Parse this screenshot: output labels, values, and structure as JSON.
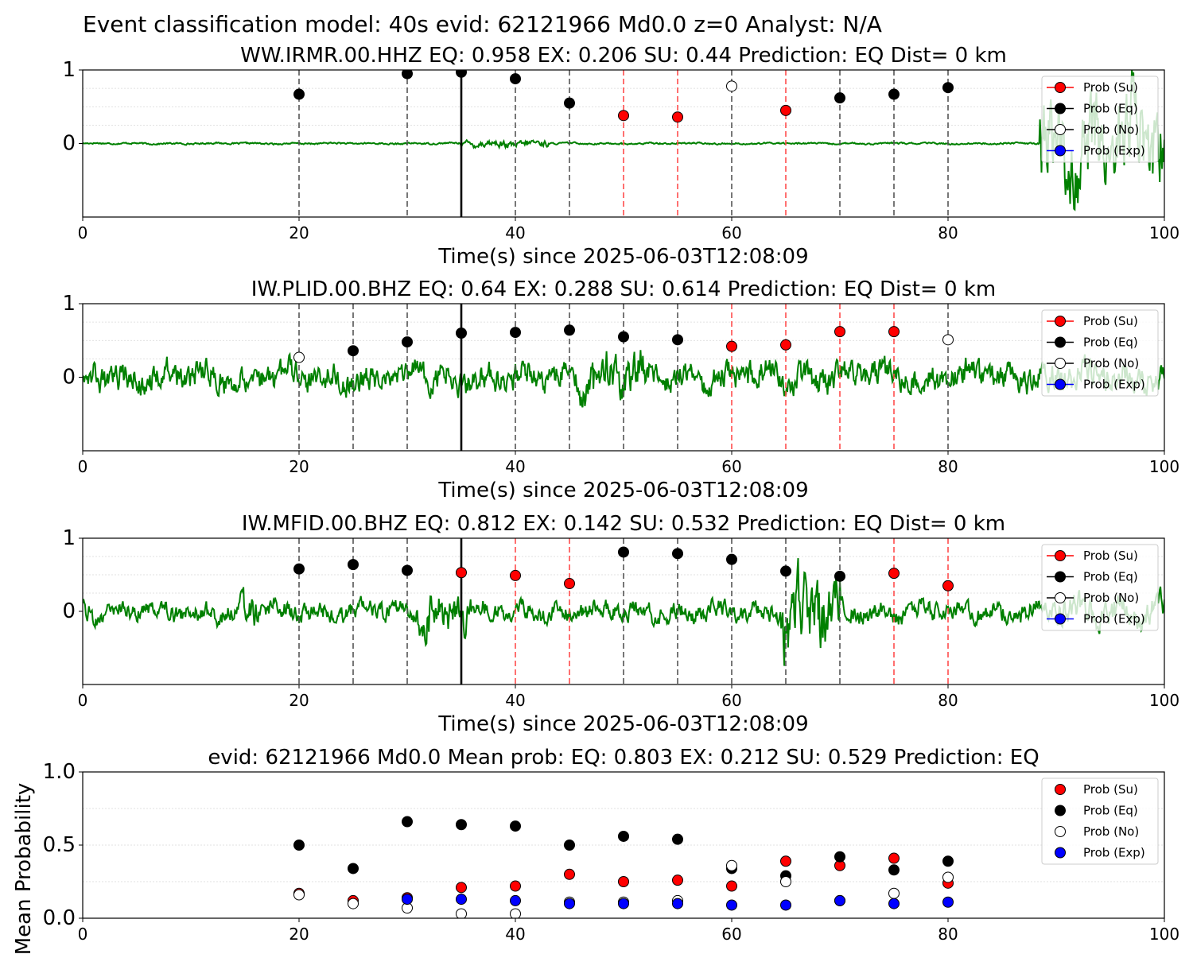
{
  "suptitle": "Event classification model: 40s evid: 62121966 Md0.0 z=0 Analyst: N/A",
  "legend_labels": [
    "Prob (Su)",
    "Prob (Eq)",
    "Prob (No)",
    "Prob (Exp)"
  ],
  "colors": {
    "waveform": "#008000",
    "su": "#ff0000",
    "eq": "#000000",
    "no": "#ffffff",
    "exp": "#0000ff",
    "eq_window_line": "#555555",
    "su_window_line": "#ff4d4d",
    "origin_line": "#000000"
  },
  "chart_data": [
    {
      "type": "line",
      "title": "WW.IRMR.00.HHZ   EQ: 0.958  EX: 0.206  SU: 0.44   Prediction: EQ    Dist= 0 km",
      "xlabel": "Time(s) since 2025-06-03T12:08:09",
      "xlim": [
        0,
        100
      ],
      "xticks": [
        "0",
        "20",
        "40",
        "60",
        "80",
        "100"
      ],
      "yticks": [
        "0",
        "1"
      ],
      "origin_time": 35,
      "waveform": {
        "noise": 0.012,
        "bursts": [
          [
            35,
            43,
            0.05
          ],
          [
            88.5,
            100,
            0.65
          ]
        ]
      },
      "points": [
        {
          "x": 20,
          "y": 0.67,
          "class": "eq"
        },
        {
          "x": 30,
          "y": 0.95,
          "class": "eq"
        },
        {
          "x": 35,
          "y": 0.97,
          "class": "eq"
        },
        {
          "x": 40,
          "y": 0.88,
          "class": "eq"
        },
        {
          "x": 45,
          "y": 0.55,
          "class": "eq"
        },
        {
          "x": 50,
          "y": 0.38,
          "class": "su"
        },
        {
          "x": 55,
          "y": 0.36,
          "class": "su"
        },
        {
          "x": 60,
          "y": 0.78,
          "class": "no"
        },
        {
          "x": 65,
          "y": 0.45,
          "class": "su"
        },
        {
          "x": 70,
          "y": 0.62,
          "class": "eq"
        },
        {
          "x": 75,
          "y": 0.67,
          "class": "eq"
        },
        {
          "x": 80,
          "y": 0.76,
          "class": "eq"
        }
      ]
    },
    {
      "type": "line",
      "title": "IW.PLID.00.BHZ   EQ: 0.64  EX: 0.288  SU: 0.614   Prediction: EQ    Dist= 0 km",
      "xlabel": "Time(s) since 2025-06-03T12:08:09",
      "xlim": [
        0,
        100
      ],
      "xticks": [
        "0",
        "20",
        "40",
        "60",
        "80",
        "100"
      ],
      "yticks": [
        "0",
        "1"
      ],
      "origin_time": 35,
      "waveform": {
        "noise": 0.2,
        "bursts": [
          [
            46,
            52,
            0.32
          ],
          [
            88,
            100,
            0.18
          ]
        ]
      },
      "points": [
        {
          "x": 20,
          "y": 0.27,
          "class": "no"
        },
        {
          "x": 25,
          "y": 0.36,
          "class": "eq"
        },
        {
          "x": 30,
          "y": 0.48,
          "class": "eq"
        },
        {
          "x": 35,
          "y": 0.6,
          "class": "eq"
        },
        {
          "x": 40,
          "y": 0.61,
          "class": "eq"
        },
        {
          "x": 45,
          "y": 0.64,
          "class": "eq"
        },
        {
          "x": 50,
          "y": 0.55,
          "class": "eq"
        },
        {
          "x": 55,
          "y": 0.51,
          "class": "eq"
        },
        {
          "x": 60,
          "y": 0.42,
          "class": "su"
        },
        {
          "x": 65,
          "y": 0.44,
          "class": "su"
        },
        {
          "x": 70,
          "y": 0.62,
          "class": "su"
        },
        {
          "x": 75,
          "y": 0.62,
          "class": "su"
        },
        {
          "x": 80,
          "y": 0.51,
          "class": "no"
        }
      ]
    },
    {
      "type": "line",
      "title": "IW.MFID.00.BHZ   EQ: 0.812  EX: 0.142  SU: 0.532   Prediction: EQ    Dist= 0 km",
      "xlabel": "Time(s) since 2025-06-03T12:08:09",
      "xlim": [
        0,
        100
      ],
      "xticks": [
        "0",
        "20",
        "40",
        "60",
        "80",
        "100"
      ],
      "yticks": [
        "0",
        "1"
      ],
      "origin_time": 35,
      "waveform": {
        "noise": 0.14,
        "bursts": [
          [
            14.5,
            16,
            0.25
          ],
          [
            31,
            36,
            0.3
          ],
          [
            64.5,
            70,
            0.55
          ],
          [
            90,
            100,
            0.2
          ]
        ]
      },
      "points": [
        {
          "x": 20,
          "y": 0.58,
          "class": "eq"
        },
        {
          "x": 25,
          "y": 0.64,
          "class": "eq"
        },
        {
          "x": 30,
          "y": 0.56,
          "class": "eq"
        },
        {
          "x": 35,
          "y": 0.53,
          "class": "su"
        },
        {
          "x": 40,
          "y": 0.49,
          "class": "su"
        },
        {
          "x": 45,
          "y": 0.38,
          "class": "su"
        },
        {
          "x": 50,
          "y": 0.81,
          "class": "eq"
        },
        {
          "x": 55,
          "y": 0.79,
          "class": "eq"
        },
        {
          "x": 60,
          "y": 0.71,
          "class": "eq"
        },
        {
          "x": 65,
          "y": 0.55,
          "class": "eq"
        },
        {
          "x": 70,
          "y": 0.48,
          "class": "eq"
        },
        {
          "x": 75,
          "y": 0.52,
          "class": "su"
        },
        {
          "x": 80,
          "y": 0.35,
          "class": "su"
        }
      ]
    },
    {
      "type": "scatter",
      "title": "evid: 62121966  Md0.0   Mean prob:   EQ: 0.803  EX: 0.212  SU: 0.529   Prediction: EQ",
      "xlabel": "",
      "ylabel": "Mean Probability",
      "xlim": [
        0,
        100
      ],
      "ylim": [
        0,
        1
      ],
      "xticks": [
        "0",
        "20",
        "40",
        "60",
        "80",
        "100"
      ],
      "yticks": [
        "0.0",
        "0.5",
        "1.0"
      ],
      "x": [
        20,
        25,
        30,
        35,
        40,
        45,
        50,
        55,
        60,
        65,
        70,
        75,
        80
      ],
      "series": [
        {
          "name": "Prob (Su)",
          "class": "su",
          "values": [
            0.17,
            0.12,
            0.14,
            0.21,
            0.22,
            0.3,
            0.25,
            0.26,
            0.22,
            0.39,
            0.36,
            0.41,
            0.24
          ]
        },
        {
          "name": "Prob (Eq)",
          "class": "eq",
          "values": [
            0.5,
            0.34,
            0.66,
            0.64,
            0.63,
            0.5,
            0.56,
            0.54,
            0.34,
            0.29,
            0.42,
            0.33,
            0.39
          ]
        },
        {
          "name": "Prob (No)",
          "class": "no",
          "values": [
            0.16,
            0.1,
            0.07,
            0.03,
            0.03,
            0.11,
            0.11,
            0.12,
            0.36,
            0.25,
            0.12,
            0.17,
            0.28
          ]
        },
        {
          "name": "Prob (Exp)",
          "class": "exp",
          "values": [
            null,
            null,
            0.13,
            0.13,
            0.12,
            0.1,
            0.1,
            0.1,
            0.09,
            0.09,
            0.12,
            0.1,
            0.11
          ]
        }
      ]
    }
  ]
}
